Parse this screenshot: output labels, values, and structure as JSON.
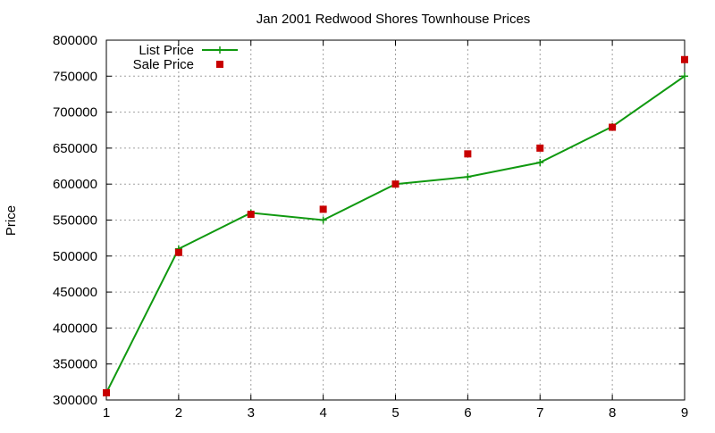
{
  "chart_data": {
    "type": "line",
    "title": "Jan 2001 Redwood Shores Townhouse Prices",
    "xlabel": "",
    "ylabel": "Price",
    "xlim": [
      1,
      9
    ],
    "ylim": [
      300000,
      800000
    ],
    "x_ticks": [
      1,
      2,
      3,
      4,
      5,
      6,
      7,
      8,
      9
    ],
    "y_ticks": [
      300000,
      350000,
      400000,
      450000,
      500000,
      550000,
      600000,
      650000,
      700000,
      750000,
      800000
    ],
    "grid": true,
    "legend_position": "top-left",
    "series": [
      {
        "name": "List Price",
        "style": "line-with-plus-markers",
        "color": "#109910",
        "points": [
          {
            "x": 1,
            "y": 310000
          },
          {
            "x": 2,
            "y": 510000
          },
          {
            "x": 3,
            "y": 560000
          },
          {
            "x": 4,
            "y": 550000
          },
          {
            "x": 5,
            "y": 600000
          },
          {
            "x": 6,
            "y": 610000
          },
          {
            "x": 7,
            "y": 630000
          },
          {
            "x": 8,
            "y": 680000
          },
          {
            "x": 9,
            "y": 750000
          }
        ]
      },
      {
        "name": "Sale Price",
        "style": "square-markers",
        "color": "#c80000",
        "points": [
          {
            "x": 1,
            "y": 310000
          },
          {
            "x": 2,
            "y": 505000
          },
          {
            "x": 3,
            "y": 558000
          },
          {
            "x": 4,
            "y": 565000
          },
          {
            "x": 5,
            "y": 600000
          },
          {
            "x": 6,
            "y": 642000
          },
          {
            "x": 7,
            "y": 650000
          },
          {
            "x": 8,
            "y": 679000
          },
          {
            "x": 9,
            "y": 773000
          }
        ]
      }
    ]
  }
}
